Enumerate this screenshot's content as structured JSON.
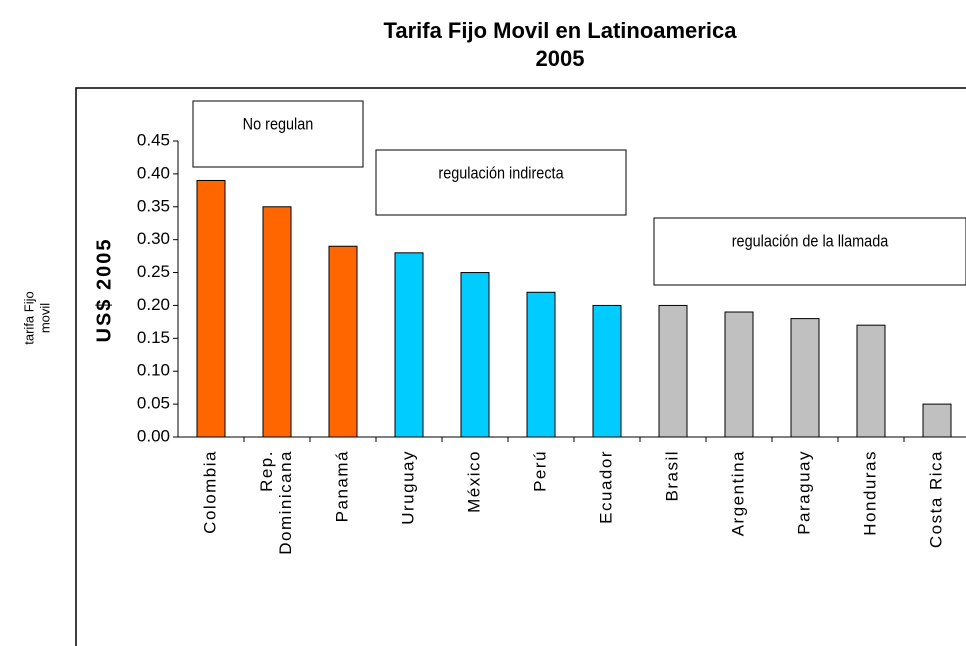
{
  "chart_data": {
    "type": "bar",
    "title": "Tarifa Fijo Movil en Latinoamerica",
    "subtitle": "2005",
    "y_label": "US$ 2005",
    "outer_label": [
      "tarifa Fijo",
      "movil"
    ],
    "categories": [
      "Colombia",
      "Rep. Dominicana",
      "Panamá",
      "Uruguay",
      "México",
      "Perú",
      "Ecuador",
      "Brasil",
      "Argentina",
      "Paraguay",
      "Honduras",
      "Costa Rica"
    ],
    "values": [
      0.39,
      0.35,
      0.29,
      0.28,
      0.25,
      0.22,
      0.2,
      0.2,
      0.19,
      0.18,
      0.17,
      0.05
    ],
    "colors": [
      "#ff6600",
      "#ff6600",
      "#ff6600",
      "#00ccff",
      "#00ccff",
      "#00ccff",
      "#00ccff",
      "#c0c0c0",
      "#c0c0c0",
      "#c0c0c0",
      "#c0c0c0",
      "#c0c0c0"
    ],
    "ylim": [
      0,
      0.45
    ],
    "yticks": [
      {
        "value": 0,
        "label": "0.00"
      },
      {
        "value": 0.05,
        "label": "0.05"
      },
      {
        "value": 0.1,
        "label": "0.10"
      },
      {
        "value": 0.15,
        "label": "0.15"
      },
      {
        "value": 0.2,
        "label": "0.20"
      },
      {
        "value": 0.25,
        "label": "0.25"
      },
      {
        "value": 0.3,
        "label": "0.30"
      },
      {
        "value": 0.35,
        "label": "0.35"
      },
      {
        "value": 0.4,
        "label": "0.40"
      },
      {
        "value": 0.45,
        "label": "0.45"
      }
    ],
    "annotations": [
      "No regulan",
      "regulación indirecta",
      "regulación de la llamada"
    ]
  }
}
